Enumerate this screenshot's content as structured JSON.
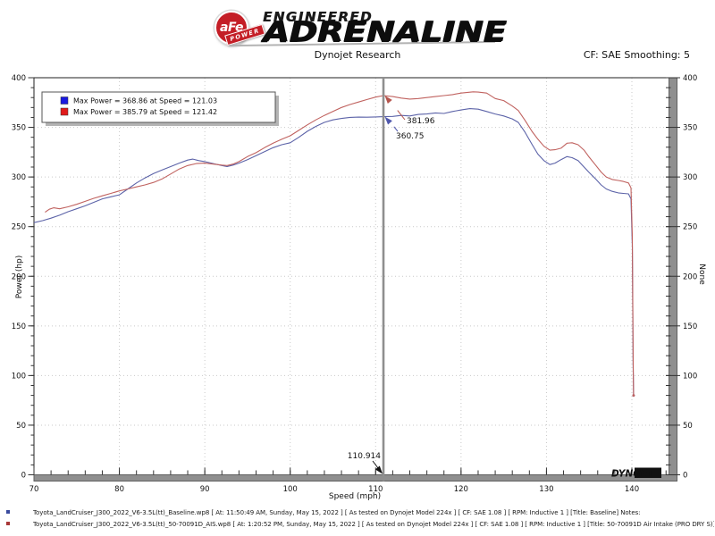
{
  "header": {
    "brand": {
      "badge_main": "aFe",
      "badge_sub": "POWER",
      "line1": "ENGINEERED",
      "line2": "ADRENALINE"
    },
    "subtitle": "Dynojet Research",
    "smoothing": "CF: SAE Smoothing: 5"
  },
  "chart_data": {
    "type": "line",
    "xlabel": "Speed (mph)",
    "ylabel_left": "Power (hp)",
    "ylabel_right": "None",
    "xlim": [
      70,
      145
    ],
    "ylim": [
      0,
      400
    ],
    "x_major_ticks": [
      70,
      80,
      90,
      100,
      110,
      120,
      130,
      140
    ],
    "x_minor_step": 2,
    "y_major_ticks": [
      0,
      50,
      100,
      150,
      200,
      250,
      300,
      350,
      400
    ],
    "y_minor_step": 10,
    "grid": "dotted",
    "legend": {
      "position": "top-left",
      "entries": [
        {
          "color": "#1a1ae0",
          "label": "Max Power = 368.86 at Speed = 121.03"
        },
        {
          "color": "#e01a1a",
          "label": "Max Power = 385.79 at Speed = 121.42"
        }
      ]
    },
    "cursor": {
      "x": 110.914,
      "label": "110.914"
    },
    "annotations": [
      {
        "text": "381.96",
        "color": "#b5554d",
        "speed": 110.914,
        "power": 381.96
      },
      {
        "text": "360.75",
        "color": "#5058ad",
        "speed": 110.914,
        "power": 360.75
      }
    ],
    "series": [
      {
        "name": "Baseline",
        "color": "#5c63a8",
        "max_power": 368.86,
        "max_power_speed": 121.03,
        "power_at_cursor": 360.75,
        "points": [
          [
            70,
            254
          ],
          [
            71,
            256
          ],
          [
            72,
            258.5
          ],
          [
            73,
            261.5
          ],
          [
            74,
            265
          ],
          [
            75,
            268
          ],
          [
            76,
            271
          ],
          [
            77,
            274.5
          ],
          [
            78,
            278
          ],
          [
            79,
            280
          ],
          [
            80,
            282
          ],
          [
            81,
            288
          ],
          [
            82,
            294
          ],
          [
            83,
            299
          ],
          [
            84,
            303.5
          ],
          [
            85,
            307
          ],
          [
            86,
            310.5
          ],
          [
            87,
            314
          ],
          [
            88,
            317
          ],
          [
            88.6,
            318
          ],
          [
            89.3,
            316.5
          ],
          [
            90,
            315.5
          ],
          [
            91,
            313.5
          ],
          [
            92,
            311.5
          ],
          [
            92.6,
            310.5
          ],
          [
            93.3,
            312
          ],
          [
            94,
            314
          ],
          [
            95,
            317.5
          ],
          [
            96,
            321.5
          ],
          [
            97,
            325.5
          ],
          [
            98,
            329.5
          ],
          [
            99,
            332.5
          ],
          [
            100,
            334.5
          ],
          [
            101,
            340
          ],
          [
            102,
            346
          ],
          [
            103,
            351
          ],
          [
            104,
            355
          ],
          [
            105,
            357.5
          ],
          [
            106,
            359
          ],
          [
            107,
            360
          ],
          [
            108,
            360.3
          ],
          [
            109,
            360.2
          ],
          [
            110,
            360.5
          ],
          [
            110.914,
            360.75
          ],
          [
            112,
            361
          ],
          [
            113,
            362
          ],
          [
            114,
            361.5
          ],
          [
            115,
            363
          ],
          [
            116,
            363.5
          ],
          [
            117,
            364.5
          ],
          [
            118,
            364
          ],
          [
            119,
            366
          ],
          [
            120,
            367.5
          ],
          [
            121.03,
            368.86
          ],
          [
            122,
            368.3
          ],
          [
            123,
            366
          ],
          [
            124,
            363.5
          ],
          [
            125,
            361.5
          ],
          [
            126,
            358.5
          ],
          [
            126.7,
            355
          ],
          [
            127.5,
            345
          ],
          [
            128.3,
            333
          ],
          [
            129,
            323
          ],
          [
            129.7,
            316.5
          ],
          [
            130.4,
            312.5
          ],
          [
            131,
            314
          ],
          [
            131.7,
            317.5
          ],
          [
            132.4,
            320.5
          ],
          [
            133,
            319.5
          ],
          [
            133.7,
            316.5
          ],
          [
            134.4,
            310
          ],
          [
            135,
            304.5
          ],
          [
            135.7,
            298.5
          ],
          [
            136.4,
            292
          ],
          [
            137,
            288
          ],
          [
            137.7,
            285.5
          ],
          [
            138.4,
            284
          ],
          [
            139,
            283.5
          ],
          [
            139.6,
            283
          ],
          [
            139.9,
            278
          ],
          [
            140.05,
            230
          ],
          [
            140.15,
            110
          ],
          [
            140.2,
            80
          ]
        ]
      },
      {
        "name": "50-70091D Air Intake (PRO DRY S)",
        "color": "#c0625f",
        "max_power": 385.79,
        "max_power_speed": 121.42,
        "power_at_cursor": 381.96,
        "points": [
          [
            71.3,
            264.5
          ],
          [
            71.8,
            267.5
          ],
          [
            72.3,
            269
          ],
          [
            73,
            268
          ],
          [
            74,
            270
          ],
          [
            75,
            272.5
          ],
          [
            76,
            275.5
          ],
          [
            77,
            278.5
          ],
          [
            78,
            281
          ],
          [
            79,
            283.5
          ],
          [
            80,
            286
          ],
          [
            81,
            288
          ],
          [
            82,
            290
          ],
          [
            83,
            292
          ],
          [
            84,
            294.5
          ],
          [
            85,
            298
          ],
          [
            86,
            303
          ],
          [
            87,
            308
          ],
          [
            88,
            311.5
          ],
          [
            89,
            313.5
          ],
          [
            90,
            314
          ],
          [
            91,
            313
          ],
          [
            92,
            312
          ],
          [
            92.6,
            311.5
          ],
          [
            93.3,
            313
          ],
          [
            94,
            315.5
          ],
          [
            95,
            320.5
          ],
          [
            96,
            324.5
          ],
          [
            97,
            329.5
          ],
          [
            98,
            334
          ],
          [
            99,
            338
          ],
          [
            100,
            341.5
          ],
          [
            101,
            347
          ],
          [
            102,
            352.5
          ],
          [
            103,
            357.5
          ],
          [
            104,
            362
          ],
          [
            105,
            366
          ],
          [
            106,
            370
          ],
          [
            107,
            373
          ],
          [
            108,
            375.5
          ],
          [
            109,
            378
          ],
          [
            110,
            380.5
          ],
          [
            110.914,
            381.96
          ],
          [
            112,
            381
          ],
          [
            113,
            379.5
          ],
          [
            114,
            378.5
          ],
          [
            115,
            379
          ],
          [
            116,
            380
          ],
          [
            117,
            381
          ],
          [
            118,
            382
          ],
          [
            119,
            383
          ],
          [
            120,
            384.5
          ],
          [
            121.42,
            385.79
          ],
          [
            122,
            385.5
          ],
          [
            123,
            384.5
          ],
          [
            124,
            379
          ],
          [
            125,
            377
          ],
          [
            126,
            371.5
          ],
          [
            126.7,
            367
          ],
          [
            127.5,
            357
          ],
          [
            128.3,
            346
          ],
          [
            129,
            338
          ],
          [
            129.7,
            331
          ],
          [
            130.4,
            327
          ],
          [
            131,
            327.5
          ],
          [
            131.7,
            329
          ],
          [
            132.4,
            334
          ],
          [
            133,
            334.5
          ],
          [
            133.7,
            332.5
          ],
          [
            134.4,
            327
          ],
          [
            135,
            320
          ],
          [
            135.7,
            312.5
          ],
          [
            136.4,
            305
          ],
          [
            137,
            300
          ],
          [
            137.7,
            297.5
          ],
          [
            138.4,
            296.5
          ],
          [
            139,
            295.5
          ],
          [
            139.6,
            294
          ],
          [
            139.9,
            289
          ],
          [
            140.05,
            240
          ],
          [
            140.15,
            120
          ],
          [
            140.2,
            80
          ]
        ]
      }
    ]
  },
  "watermark": {
    "dyno": "DYNO",
    "jet": "JET",
    "dyno_color": "#cc1111",
    "jet_bg": "#111111"
  },
  "footer": {
    "lines": [
      {
        "bullet_color": "#3a4b9e",
        "text": "Toyota_LandCruiser_J300_2022_V6-3.5L(tt)_Baseline.wp8 [ At: 11:50:49 AM, Sunday, May 15, 2022 ] [ As tested on Dynojet Model 224x ] [ CF: SAE 1.08 ] [ RPM: Inductive 1 ] [Title: Baseline]  Notes:"
      },
      {
        "bullet_color": "#a83838",
        "text": "Toyota_LandCruiser_J300_2022_V6-3.5L(tt)_50-70091D_AIS.wp8 [ At: 1:20:52 PM, Sunday, May 15, 2022 ] [ As tested on Dynojet Model 224x ] [ CF: SAE 1.08 ] [ RPM: Inductive 1 ] [Title: 50-70091D Air Intake (PRO DRY S)]  Notes:"
      }
    ]
  }
}
